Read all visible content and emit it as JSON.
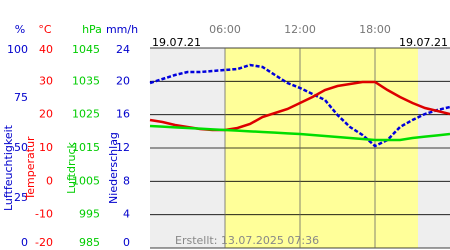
{
  "chart_data": {
    "type": "line",
    "dates": [
      "19.07.21",
      "19.07.21"
    ],
    "note": "Erstellt: 13.07.2025 07:36",
    "xlim": [
      0,
      24
    ],
    "xticks": [
      {
        "value": 6,
        "label": "06:00"
      },
      {
        "value": 12,
        "label": "12:00"
      },
      {
        "value": 18,
        "label": "18:00"
      }
    ],
    "axes": [
      {
        "unit": "%",
        "label": "Luftfeuchtigkeit",
        "color": "#0000cc",
        "ylim": [
          0,
          100
        ],
        "yticks": [
          0,
          25,
          50,
          75,
          100
        ]
      },
      {
        "unit": "°C",
        "label": "Temperatur",
        "color": "#ff0000",
        "ylim": [
          -20,
          40
        ],
        "yticks": [
          -20,
          -10,
          0,
          10,
          20,
          30,
          40
        ]
      },
      {
        "unit": "hPa",
        "label": "Luftdruck",
        "color": "#00cc00",
        "ylim": [
          985,
          1045
        ],
        "yticks": [
          985,
          995,
          1005,
          1015,
          1025,
          1035,
          1045
        ]
      },
      {
        "unit": "mm/h",
        "label": "Niederschlag",
        "color": "#0000cc",
        "ylim": [
          0,
          24
        ],
        "yticks": [
          0,
          4,
          8,
          12,
          16,
          20,
          24
        ]
      }
    ],
    "x": [
      0,
      1,
      2,
      3,
      4,
      5,
      6,
      7,
      8,
      9,
      10,
      11,
      12,
      13,
      14,
      15,
      16,
      17,
      18,
      19,
      20,
      21,
      22,
      23,
      24
    ],
    "series": [
      {
        "axis": 0,
        "color": "#0000dd",
        "style": "dotted",
        "values": [
          82.5,
          84.5,
          86.5,
          88,
          88,
          88.5,
          89,
          89.5,
          91.5,
          90.5,
          86.5,
          82.5,
          80,
          77,
          74,
          66.5,
          60.5,
          56.5,
          51,
          54,
          60.5,
          64,
          67,
          69,
          70.5
        ]
      },
      {
        "axis": 1,
        "color": "#dd0000",
        "style": "solid",
        "values": [
          18.4,
          17.8,
          16.9,
          16.3,
          15.7,
          15.4,
          15.4,
          16,
          17.2,
          19.3,
          20.5,
          21.7,
          23.5,
          25.3,
          27.4,
          28.6,
          29.2,
          29.8,
          29.8,
          27.4,
          25.3,
          23.5,
          22,
          21.1,
          20.2
        ]
      },
      {
        "axis": 2,
        "color": "#00dd00",
        "style": "solid",
        "values": [
          1021.6,
          1021.4,
          1021.2,
          1021,
          1020.8,
          1020.6,
          1020.4,
          1020.2,
          1020,
          1019.8,
          1019.6,
          1019.4,
          1019.2,
          1018.9,
          1018.6,
          1018.3,
          1018,
          1017.7,
          1017.4,
          1017.4,
          1017.4,
          1018,
          1018.4,
          1018.8,
          1019.2
        ]
      }
    ]
  }
}
